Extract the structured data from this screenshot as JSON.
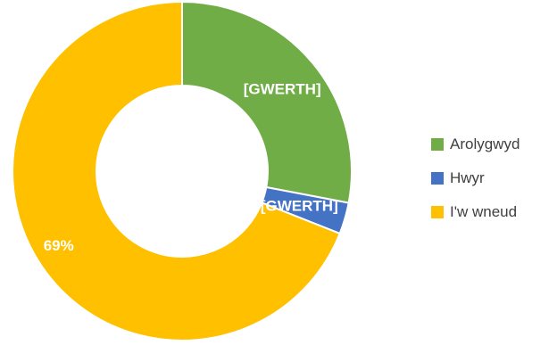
{
  "chart_data": {
    "type": "pie",
    "variant": "donut",
    "categories": [
      "Arolygwyd",
      "Hwyr",
      "I'w wneud"
    ],
    "values": [
      28,
      3,
      69
    ],
    "unit": "%",
    "data_labels": [
      "[GWERTH]",
      "[GWERTH]",
      "69%"
    ],
    "colors": [
      "#70AD47",
      "#4472C4",
      "#FFC000"
    ],
    "legend_position": "right",
    "start_angle_deg": 0,
    "direction": "clockwise"
  }
}
